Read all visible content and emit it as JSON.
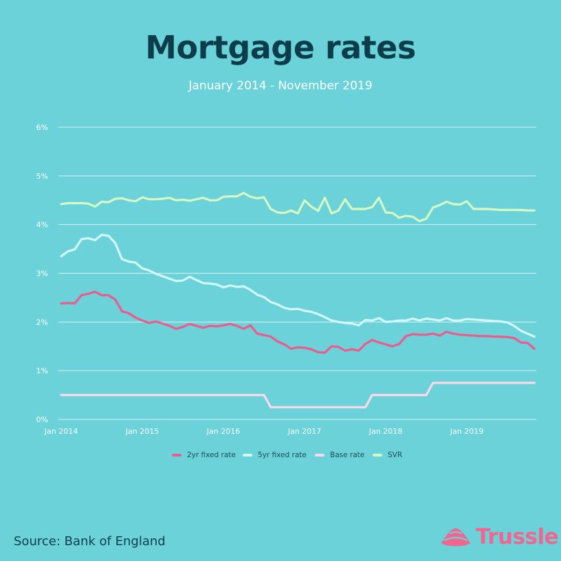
{
  "header": {
    "title": "Mortgage rates",
    "subtitle": "January 2014 - November 2019"
  },
  "footer": {
    "source": "Source: Bank of England",
    "brand": "Trussle",
    "brand_icon": "trussle-logo-icon"
  },
  "colors": {
    "background": "#6ad2d8",
    "grid": "#ffffff",
    "2yr": "#ef5a8d",
    "5yr": "#d3f6f8",
    "base": "#fbd9e6",
    "svr": "#d6f8c4"
  },
  "chart_data": {
    "type": "line",
    "xlabel": "",
    "ylabel": "",
    "ylim": [
      0,
      6
    ],
    "yticks": [
      "0%",
      "1%",
      "2%",
      "3%",
      "4%",
      "5%",
      "6%"
    ],
    "xticks": [
      "Jan 2014",
      "Jan 2015",
      "Jan 2016",
      "Jan 2017",
      "Jan 2018",
      "Jan 2019"
    ],
    "x_start": "Jan 2014",
    "x_end": "Nov 2019",
    "grid": true,
    "legend": "bottom",
    "series": [
      {
        "name": "2yr fixed rate",
        "color": "#ef5a8d",
        "values": [
          2.38,
          2.39,
          2.38,
          2.55,
          2.58,
          2.62,
          2.55,
          2.55,
          2.46,
          2.22,
          2.18,
          2.09,
          2.03,
          1.98,
          2.01,
          1.97,
          1.92,
          1.86,
          1.9,
          1.96,
          1.92,
          1.88,
          1.92,
          1.91,
          1.93,
          1.96,
          1.92,
          1.86,
          1.93,
          1.76,
          1.73,
          1.7,
          1.6,
          1.54,
          1.45,
          1.48,
          1.47,
          1.44,
          1.38,
          1.37,
          1.5,
          1.49,
          1.41,
          1.44,
          1.41,
          1.55,
          1.63,
          1.58,
          1.54,
          1.5,
          1.55,
          1.71,
          1.75,
          1.74,
          1.74,
          1.76,
          1.72,
          1.8,
          1.76,
          1.74,
          1.73,
          1.72,
          1.71,
          1.71,
          1.7,
          1.7,
          1.69,
          1.67,
          1.58,
          1.57,
          1.45
        ]
      },
      {
        "name": "5yr fixed rate",
        "color": "#d3f6f8",
        "values": [
          3.35,
          3.45,
          3.49,
          3.7,
          3.72,
          3.68,
          3.79,
          3.77,
          3.62,
          3.29,
          3.24,
          3.22,
          3.1,
          3.06,
          2.99,
          2.94,
          2.89,
          2.84,
          2.85,
          2.93,
          2.86,
          2.8,
          2.79,
          2.77,
          2.71,
          2.75,
          2.72,
          2.73,
          2.66,
          2.56,
          2.51,
          2.41,
          2.36,
          2.29,
          2.26,
          2.27,
          2.23,
          2.21,
          2.16,
          2.1,
          2.03,
          2.0,
          1.98,
          1.97,
          1.93,
          2.04,
          2.03,
          2.08,
          2.0,
          2.01,
          2.03,
          2.03,
          2.07,
          2.03,
          2.07,
          2.05,
          2.03,
          2.08,
          2.03,
          2.03,
          2.06,
          2.05,
          2.04,
          2.03,
          2.02,
          2.01,
          1.99,
          1.92,
          1.82,
          1.76,
          1.7
        ]
      },
      {
        "name": "Base rate",
        "color": "#fbd9e6",
        "values": [
          0.5,
          0.5,
          0.5,
          0.5,
          0.5,
          0.5,
          0.5,
          0.5,
          0.5,
          0.5,
          0.5,
          0.5,
          0.5,
          0.5,
          0.5,
          0.5,
          0.5,
          0.5,
          0.5,
          0.5,
          0.5,
          0.5,
          0.5,
          0.5,
          0.5,
          0.5,
          0.5,
          0.5,
          0.5,
          0.5,
          0.5,
          0.25,
          0.25,
          0.25,
          0.25,
          0.25,
          0.25,
          0.25,
          0.25,
          0.25,
          0.25,
          0.25,
          0.25,
          0.25,
          0.25,
          0.25,
          0.5,
          0.5,
          0.5,
          0.5,
          0.5,
          0.5,
          0.5,
          0.5,
          0.5,
          0.75,
          0.75,
          0.75,
          0.75,
          0.75,
          0.75,
          0.75,
          0.75,
          0.75,
          0.75,
          0.75,
          0.75,
          0.75,
          0.75,
          0.75,
          0.75
        ]
      },
      {
        "name": "SVR",
        "color": "#d6f8c4",
        "values": [
          4.42,
          4.44,
          4.44,
          4.44,
          4.43,
          4.37,
          4.47,
          4.46,
          4.53,
          4.54,
          4.5,
          4.48,
          4.56,
          4.52,
          4.52,
          4.53,
          4.55,
          4.5,
          4.51,
          4.49,
          4.52,
          4.55,
          4.5,
          4.5,
          4.57,
          4.58,
          4.58,
          4.65,
          4.57,
          4.54,
          4.56,
          4.32,
          4.25,
          4.24,
          4.29,
          4.23,
          4.5,
          4.37,
          4.28,
          4.55,
          4.23,
          4.29,
          4.52,
          4.32,
          4.32,
          4.32,
          4.36,
          4.55,
          4.25,
          4.24,
          4.14,
          4.18,
          4.16,
          4.07,
          4.12,
          4.35,
          4.4,
          4.47,
          4.42,
          4.41,
          4.48,
          4.32,
          4.32,
          4.32,
          4.31,
          4.3,
          4.3,
          4.3,
          4.3,
          4.29,
          4.29
        ]
      }
    ]
  }
}
